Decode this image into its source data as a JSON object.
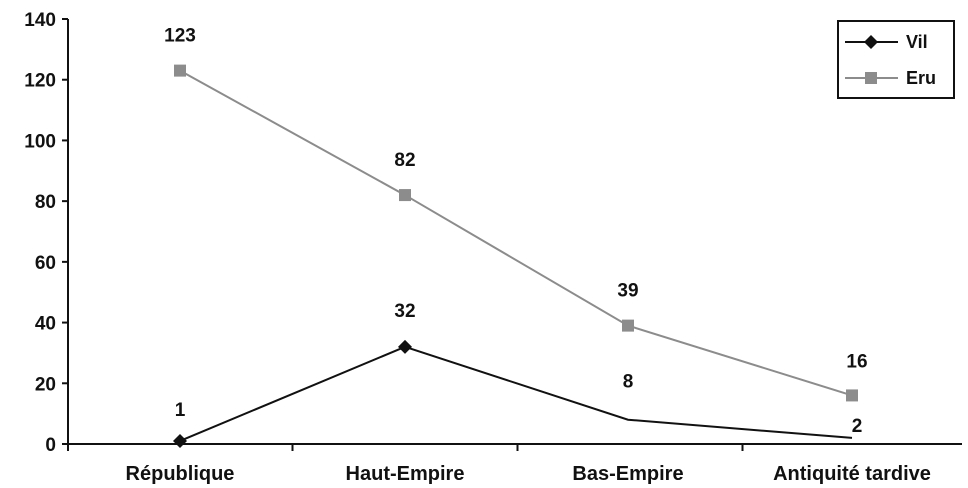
{
  "chart_data": {
    "type": "line",
    "categories": [
      "République",
      "Haut-Empire",
      "Bas-Empire",
      "Antiquité tardive"
    ],
    "series": [
      {
        "name": "Vil",
        "values": [
          1,
          32,
          8,
          2
        ],
        "color": "#111111",
        "marker": "diamond",
        "markers_shown": [
          true,
          true,
          false,
          false
        ]
      },
      {
        "name": "Eru",
        "values": [
          123,
          82,
          39,
          16
        ],
        "color": "#8c8c8c",
        "marker": "square",
        "markers_shown": [
          true,
          true,
          true,
          true
        ]
      }
    ],
    "ylim": [
      0,
      140
    ],
    "yticks": [
      0,
      20,
      40,
      60,
      80,
      100,
      120,
      140
    ],
    "ytick_labels": [
      "0",
      "20",
      "40",
      "60",
      "80",
      "100",
      "120",
      "140"
    ],
    "title": "",
    "xlabel": "",
    "ylabel": "",
    "grid": false,
    "legend": "top-right",
    "data_labels": true
  }
}
